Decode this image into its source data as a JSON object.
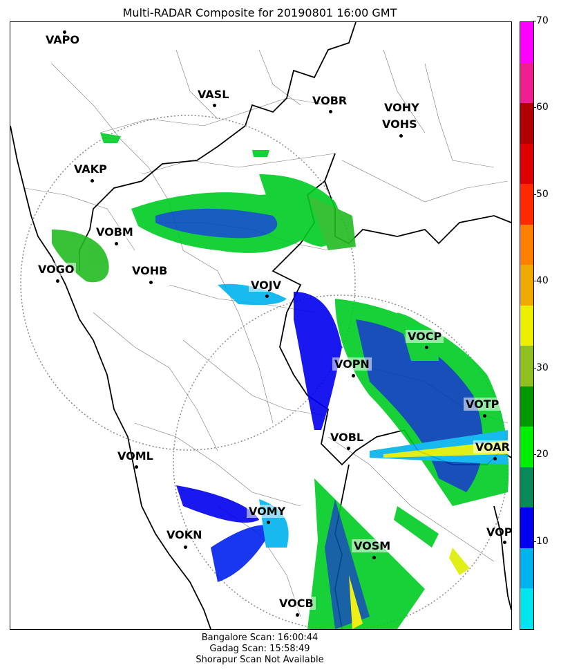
{
  "title": "Multi-RADAR Composite for 20190801 16:00 GMT",
  "stations": [
    {
      "code": "VAPO",
      "highlight": false
    },
    {
      "code": "VASL",
      "highlight": false
    },
    {
      "code": "VOBR",
      "highlight": false
    },
    {
      "code": "VOHY",
      "highlight": false
    },
    {
      "code": "VOHS",
      "highlight": false
    },
    {
      "code": "VAKP",
      "highlight": false
    },
    {
      "code": "VOBM",
      "highlight": true
    },
    {
      "code": "VOGO",
      "highlight": true
    },
    {
      "code": "VOHB",
      "highlight": false
    },
    {
      "code": "VOJV",
      "highlight": true
    },
    {
      "code": "VOCP",
      "highlight": true
    },
    {
      "code": "VOPN",
      "highlight": true
    },
    {
      "code": "VOTP",
      "highlight": true
    },
    {
      "code": "VOBL",
      "highlight": false
    },
    {
      "code": "VOAR",
      "highlight": true
    },
    {
      "code": "VOML",
      "highlight": false
    },
    {
      "code": "VOMY",
      "highlight": true
    },
    {
      "code": "VOKN",
      "highlight": false
    },
    {
      "code": "VOPC",
      "highlight": false
    },
    {
      "code": "VOSM",
      "highlight": true
    },
    {
      "code": "VOCB",
      "highlight": true
    }
  ],
  "colorbar": {
    "min": 0,
    "max": 70,
    "ticks": [
      "10",
      "20",
      "30",
      "40",
      "50",
      "60",
      "70"
    ],
    "colors": [
      "#00e5ee",
      "#00b2ee",
      "#0000ee",
      "#0a8a5a",
      "#00ee00",
      "#009a00",
      "#90c020",
      "#eeee00",
      "#eeaa00",
      "#ff7f00",
      "#ff2a00",
      "#dd0000",
      "#b00000",
      "#ee2090",
      "#ff00ff"
    ]
  },
  "footer": {
    "line1": "Bangalore Scan: 16:00:44",
    "line2": "Gadag Scan: 15:58:49",
    "line3": "Shorapur Scan Not Available"
  }
}
